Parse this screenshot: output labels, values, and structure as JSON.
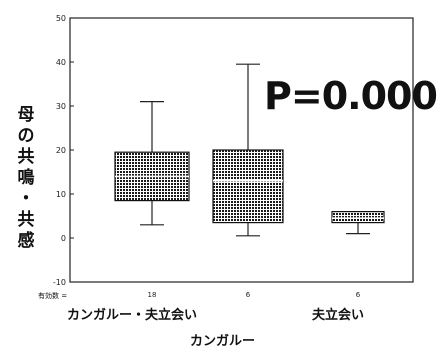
{
  "chart_data": {
    "type": "boxplot",
    "title": "",
    "ylabel": "母の共鳴・共感",
    "xlabel": "カンガルー",
    "ylim": [
      -10,
      50
    ],
    "yticks": [
      "-10",
      "0",
      "10",
      "20",
      "30",
      "40",
      "50"
    ],
    "grid": false,
    "categories": [
      "カンガルー・夫立会い",
      "",
      "夫立会い"
    ],
    "n_title": "有効数 =",
    "n_values": [
      "18",
      "6",
      "6"
    ],
    "annotation": "P=0.000",
    "boxes": [
      {
        "min": 3,
        "q1": 8.5,
        "median": 14,
        "q3": 19.5,
        "max": 31
      },
      {
        "min": 0.5,
        "q1": 3.5,
        "median": 13,
        "q3": 20,
        "max": 39.5
      },
      {
        "min": 1,
        "q1": 3.5,
        "median": 4.5,
        "q3": 6,
        "max": 6
      }
    ]
  }
}
